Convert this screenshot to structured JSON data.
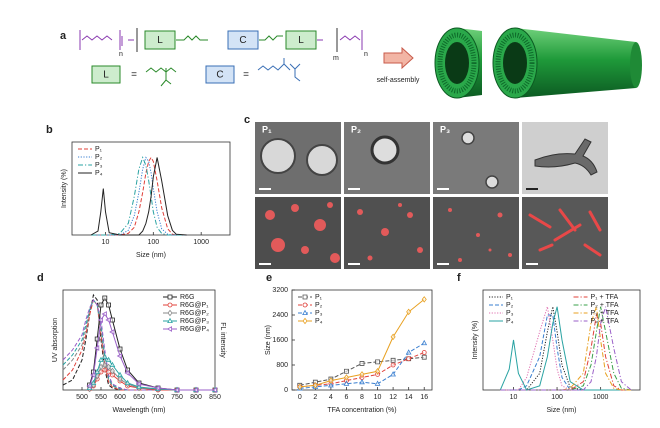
{
  "panels": {
    "a": {
      "letter": "a",
      "boxes": [
        "L",
        "C",
        "L",
        "L",
        "C"
      ],
      "equals": [
        "=",
        "="
      ],
      "subscripts": [
        "n",
        "m",
        "n"
      ],
      "arrow_label": "self-assembly"
    },
    "c": {
      "letter": "c",
      "labels": [
        "P₁",
        "P₂",
        "P₃"
      ]
    }
  },
  "chart_data": [
    {
      "panel": "b",
      "type": "line",
      "xlabel": "Size (nm)",
      "ylabel": "Intensity (%)",
      "xlog": true,
      "xlim": [
        2,
        4000
      ],
      "xticks": [
        10,
        100,
        1000
      ],
      "ylim": [
        0,
        12
      ],
      "legend": "top-left",
      "x": [
        5,
        7,
        8,
        9,
        10,
        12,
        20,
        30,
        40,
        50,
        60,
        70,
        80,
        90,
        100,
        120,
        150,
        200,
        250,
        300,
        500
      ],
      "series": [
        {
          "name": "P₁",
          "color": "#e0403a",
          "style": "dashed",
          "values": [
            0,
            0,
            0,
            0,
            0,
            0,
            0,
            0.2,
            1,
            3,
            5.5,
            8,
            9.5,
            10,
            9.5,
            7,
            3.5,
            0.8,
            0.1,
            0,
            0
          ]
        },
        {
          "name": "P₂",
          "color": "#3a7fd0",
          "style": "dotted",
          "values": [
            0,
            0,
            0,
            0,
            0,
            0,
            0,
            0.6,
            2.5,
            5.5,
            8.5,
            10,
            9.5,
            8,
            6,
            3,
            0.8,
            0.1,
            0,
            0,
            0
          ]
        },
        {
          "name": "P₃",
          "color": "#2aa3a3",
          "style": "dashdot",
          "values": [
            0,
            0,
            0,
            0,
            0,
            0,
            0.2,
            1.5,
            5,
            8.5,
            10,
            9,
            7,
            5,
            3,
            1,
            0.2,
            0,
            0,
            0,
            0
          ]
        },
        {
          "name": "P₄",
          "color": "#222222",
          "style": "solid",
          "values": [
            0,
            0.5,
            3,
            6,
            3,
            0.3,
            0,
            0,
            0,
            0,
            0.5,
            1.5,
            3,
            5,
            7.5,
            10,
            7,
            2.5,
            0.6,
            0.1,
            0
          ]
        }
      ]
    },
    {
      "panel": "d",
      "type": "line",
      "xlabel": "Wavelength (nm)",
      "ylabel": "UV absorption",
      "y2label": "FL intensity",
      "xlim": [
        450,
        850
      ],
      "xticks": [
        500,
        550,
        600,
        650,
        700,
        750,
        800,
        850
      ],
      "ylim": [
        0,
        10
      ],
      "y2lim": [
        0,
        10
      ],
      "legend": "top-right",
      "x": [
        450,
        475,
        500,
        510,
        520,
        530,
        540,
        550,
        560,
        570,
        580,
        600,
        620,
        650,
        700,
        750,
        800,
        850
      ],
      "series": [
        {
          "color": "#222222",
          "style": "dashed",
          "values": [
            0.5,
            1,
            3,
            5,
            7.5,
            9.5,
            9,
            5,
            2,
            0.5,
            0.2,
            0,
            0,
            0,
            0,
            0,
            0,
            0
          ]
        },
        {
          "color": "#e0403a",
          "style": "dashed",
          "values": [
            1,
            2,
            4,
            5.5,
            7.5,
            9,
            8.5,
            5.5,
            2.5,
            0.8,
            0.3,
            0,
            0,
            0,
            0,
            0,
            0,
            0
          ]
        },
        {
          "color": "#888888",
          "style": "dashed",
          "values": [
            2,
            3,
            4.5,
            6,
            8,
            9,
            8.5,
            6,
            3,
            1,
            0.4,
            0.1,
            0,
            0,
            0,
            0,
            0,
            0
          ]
        },
        {
          "color": "#2aa3a3",
          "style": "dashed",
          "values": [
            2.5,
            3.5,
            5,
            6.5,
            8,
            9,
            8.5,
            6.5,
            3.5,
            1.2,
            0.5,
            0.1,
            0,
            0,
            0,
            0,
            0,
            0
          ]
        },
        {
          "color": "#9a5fc8",
          "style": "dashed",
          "values": [
            3,
            4,
            5.5,
            7,
            8.2,
            9,
            8.5,
            7,
            4,
            1.5,
            0.6,
            0.2,
            0,
            0,
            0,
            0,
            0,
            0
          ]
        },
        {
          "name": "R6G",
          "color": "#222222",
          "style": "solid",
          "marker": "square",
          "axis": "y2",
          "values": [
            null,
            null,
            null,
            null,
            0.5,
            1.8,
            5.1,
            8.5,
            9.2,
            8.5,
            7,
            4.1,
            2,
            0.7,
            0.2,
            0,
            0,
            0
          ]
        },
        {
          "name": "R6G@P₁",
          "color": "#e0403a",
          "style": "solid",
          "marker": "circle",
          "axis": "y2",
          "values": [
            null,
            null,
            null,
            null,
            0.1,
            0.4,
            1.1,
            1.8,
            2,
            1.8,
            1.5,
            0.9,
            0.4,
            0.2,
            0,
            0,
            0,
            0
          ]
        },
        {
          "name": "R6G@P₂",
          "color": "#888888",
          "style": "solid",
          "marker": "diamond",
          "axis": "y2",
          "values": [
            null,
            null,
            null,
            null,
            0.1,
            0.5,
            1.4,
            2.3,
            2.5,
            2.3,
            1.9,
            1.1,
            0.6,
            0.2,
            0.1,
            0,
            0,
            0
          ]
        },
        {
          "name": "R6G@P₃",
          "color": "#2aa3a3",
          "style": "solid",
          "marker": "triangle",
          "axis": "y2",
          "values": [
            null,
            null,
            null,
            null,
            0.2,
            0.7,
            1.8,
            3,
            3.3,
            3,
            2.5,
            1.5,
            0.7,
            0.3,
            0.1,
            0,
            0,
            0
          ]
        },
        {
          "name": "R6G@P₄",
          "color": "#9a5fc8",
          "style": "solid",
          "marker": "triangle-left",
          "axis": "y2",
          "values": [
            null,
            null,
            null,
            null,
            0.4,
            1.5,
            4.2,
            7,
            7.6,
            7,
            5.8,
            3.4,
            1.7,
            0.6,
            0.2,
            0,
            0,
            0
          ]
        }
      ]
    },
    {
      "panel": "e",
      "type": "line",
      "xlabel": "TFA concentration (%)",
      "ylabel": "Size (nm)",
      "xlim": [
        -1,
        17
      ],
      "xticks": [
        0,
        2,
        4,
        6,
        8,
        10,
        12,
        14,
        16
      ],
      "ylim": [
        0,
        3200
      ],
      "yticks": [
        0,
        800,
        1600,
        2400,
        3200
      ],
      "legend": "top-left",
      "x": [
        0,
        2,
        4,
        6,
        8,
        10,
        12,
        14,
        16
      ],
      "series": [
        {
          "name": "P₁",
          "color": "#555555",
          "style": "dashed",
          "marker": "square",
          "values": [
            150,
            250,
            350,
            600,
            850,
            900,
            950,
            1000,
            1050
          ]
        },
        {
          "name": "P₂",
          "color": "#e0403a",
          "style": "dashed",
          "marker": "circle",
          "values": [
            100,
            150,
            200,
            300,
            400,
            500,
            800,
            1000,
            1200
          ]
        },
        {
          "name": "P₃",
          "color": "#3a7fd0",
          "style": "dashed",
          "marker": "triangle",
          "values": [
            50,
            100,
            150,
            200,
            250,
            200,
            500,
            1200,
            1500
          ]
        },
        {
          "name": "P₄",
          "color": "#e8a020",
          "style": "solid",
          "marker": "diamond",
          "values": [
            100,
            150,
            300,
            400,
            500,
            600,
            1700,
            2500,
            2900
          ]
        }
      ]
    },
    {
      "panel": "f",
      "type": "line",
      "xlabel": "Size (nm)",
      "ylabel": "Intensity (%)",
      "xlog": true,
      "xlim": [
        2,
        8000
      ],
      "xticks": [
        10,
        100,
        1000
      ],
      "ylim": [
        0,
        12
      ],
      "legend": "top",
      "legend_columns": 2,
      "x": [
        5,
        8,
        10,
        13,
        20,
        40,
        60,
        80,
        100,
        130,
        200,
        400,
        600,
        800,
        1000,
        1300,
        2000,
        3000,
        5000
      ],
      "series": [
        {
          "name": "P₁",
          "color": "#222222",
          "style": "dotted",
          "values": [
            0,
            0,
            0,
            0,
            0,
            2,
            7,
            10,
            7,
            3,
            0.3,
            0,
            0,
            0,
            0,
            0,
            0,
            0,
            0
          ]
        },
        {
          "name": "P₂",
          "color": "#3a7fd0",
          "style": "dashed",
          "values": [
            0,
            0,
            0,
            0,
            0.5,
            4,
            9,
            9,
            5,
            1.5,
            0,
            0,
            0,
            0,
            0,
            0,
            0,
            0,
            0
          ]
        },
        {
          "name": "P₃",
          "color": "#e070b0",
          "style": "dotted",
          "values": [
            0,
            0,
            0,
            0,
            1.5,
            7,
            10,
            6,
            2.5,
            0.5,
            0,
            0,
            0,
            0,
            0,
            0,
            0,
            0,
            0
          ]
        },
        {
          "name": "P₄",
          "color": "#2aa3a3",
          "style": "solid",
          "values": [
            0,
            2.5,
            6,
            2,
            0,
            0.5,
            4,
            8,
            10,
            6,
            1,
            0,
            0,
            0,
            0,
            0,
            0,
            0,
            0
          ]
        },
        {
          "name": "P₁ + TFA",
          "color": "#e0403a",
          "style": "dashdot",
          "values": [
            0,
            0,
            0,
            0,
            0,
            0,
            0,
            0,
            0,
            0,
            0,
            1,
            5,
            9,
            8,
            4,
            0.5,
            0,
            0
          ]
        },
        {
          "name": "P₂ + TFA",
          "color": "#3aa04a",
          "style": "dashdot",
          "values": [
            0,
            0,
            0,
            0,
            0,
            0,
            0,
            0,
            0,
            0,
            0,
            0.5,
            3,
            7,
            10,
            7,
            2,
            0.2,
            0
          ]
        },
        {
          "name": "P₃ + TFA",
          "color": "#e8a020",
          "style": "dashdot",
          "values": [
            0,
            0,
            0,
            0,
            0,
            0,
            0,
            0,
            0,
            0,
            0.2,
            2,
            8,
            10,
            6,
            2,
            0.2,
            0,
            0
          ]
        },
        {
          "name": "P₄ + TFA",
          "color": "#9a5fc8",
          "style": "dashdot",
          "values": [
            0,
            0,
            0,
            0,
            0,
            0,
            0,
            0,
            0,
            0,
            0,
            0,
            1,
            4,
            8,
            10,
            5,
            1,
            0
          ]
        }
      ]
    }
  ]
}
